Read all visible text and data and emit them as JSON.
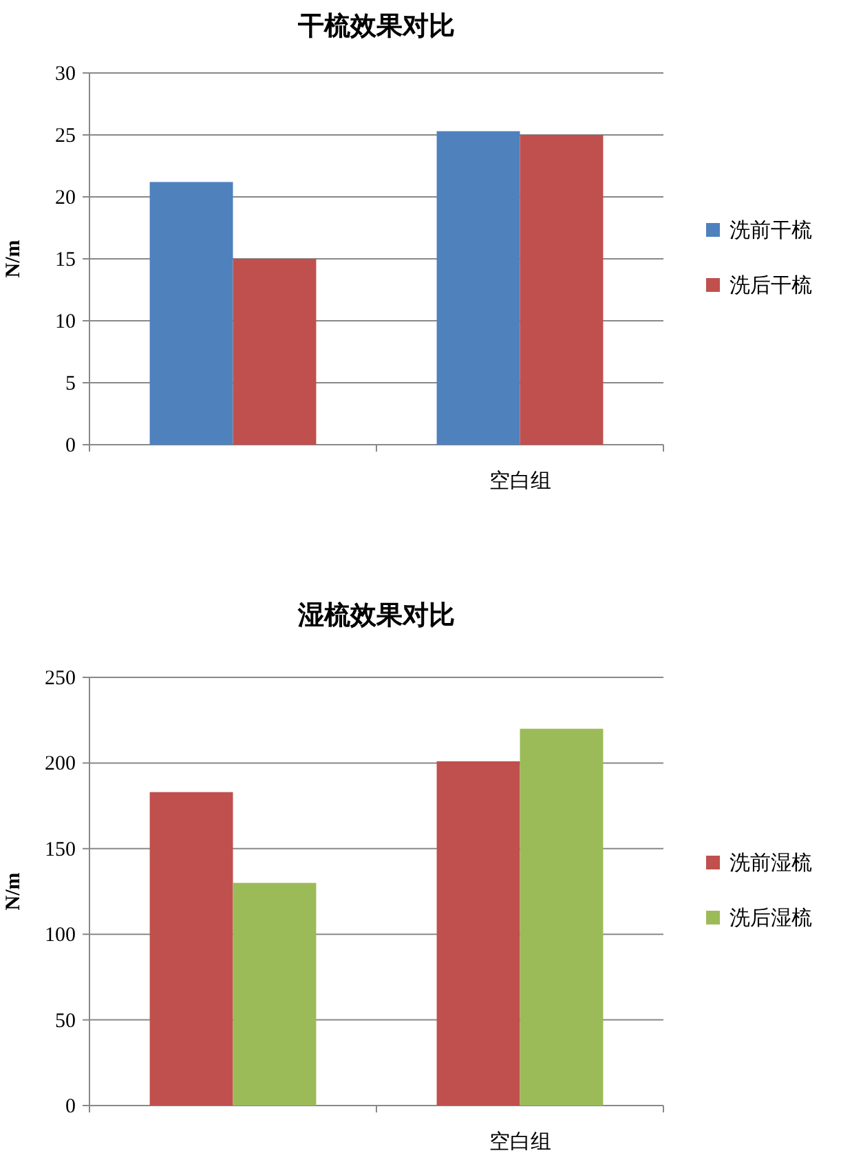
{
  "chart_data": [
    {
      "type": "bar",
      "title": "干梳效果对比",
      "ylabel": "N/m",
      "categories": [
        null,
        "空白组"
      ],
      "series": [
        {
          "name": "洗前干梳",
          "color": "#4f81bd",
          "values": [
            21.2,
            25.3
          ]
        },
        {
          "name": "洗后干梳",
          "color": "#c0504d",
          "values": [
            15.0,
            25.0
          ]
        }
      ],
      "ylim": [
        0,
        30
      ],
      "yticks": [
        0,
        5,
        10,
        15,
        20,
        25,
        30
      ],
      "grid": "y",
      "legend": "right"
    },
    {
      "type": "bar",
      "title": "湿梳效果对比",
      "ylabel": "N/m",
      "categories": [
        null,
        "空白组"
      ],
      "series": [
        {
          "name": "洗前湿梳",
          "color": "#c0504d",
          "values": [
            183,
            201
          ]
        },
        {
          "name": "洗后湿梳",
          "color": "#9bbb59",
          "values": [
            130,
            220
          ]
        }
      ],
      "ylim": [
        0,
        250
      ],
      "yticks": [
        0,
        50,
        100,
        150,
        200,
        250
      ],
      "grid": "y",
      "legend": "right"
    }
  ]
}
